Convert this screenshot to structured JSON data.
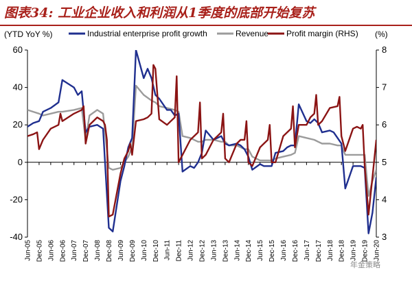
{
  "figure_title": "图表34: 工业企业收入和利润从1季度的底部开始复苏",
  "watermark": "年金策略",
  "colors": {
    "title": "#a8201a",
    "profit_growth": "#1f2f8f",
    "revenue": "#9b9b9b",
    "profit_margin": "#8b1414"
  },
  "chart_data": {
    "type": "line",
    "left_axis_label": "(YTD YoY %)",
    "right_axis_label": "(%)",
    "left_ylim": [
      -40,
      60
    ],
    "left_ticks": [
      -40,
      -20,
      0,
      20,
      40,
      60
    ],
    "right_ylim": [
      3,
      8
    ],
    "right_ticks": [
      3,
      4,
      5,
      6,
      7,
      8
    ],
    "x_tick_labels": [
      "Jun-05",
      "Dec-05",
      "Jun-06",
      "Dec-06",
      "Jun-07",
      "Dec-07",
      "Jun-08",
      "Dec-08",
      "Jun-09",
      "Dec-09",
      "Jun-10",
      "Dec-10",
      "Jun-11",
      "Dec-11",
      "Jun-12",
      "Dec-12",
      "Jun-13",
      "Dec-13",
      "Jun-14",
      "Dec-14",
      "Jun-15",
      "Dec-15",
      "Jun-16",
      "Dec-16",
      "Jun-17",
      "Dec-17",
      "Jun-18",
      "Dec-18",
      "Jun-19",
      "Dec-19",
      "Jun-20"
    ],
    "grid": false,
    "legend_position": "top",
    "series": [
      {
        "name": "Industrial enterprise profit growth",
        "axis": "left",
        "color_key": "profit_growth",
        "points": [
          [
            "Jun-05",
            19
          ],
          [
            "Sep-05",
            21
          ],
          [
            "Dec-05",
            22
          ],
          [
            "Feb-06",
            27
          ],
          [
            "Jun-06",
            29
          ],
          [
            "Oct-06",
            32
          ],
          [
            "Dec-06",
            44
          ],
          [
            "Jun-07",
            40
          ],
          [
            "Aug-07",
            36
          ],
          [
            "Oct-07",
            38
          ],
          [
            "Dec-07",
            16
          ],
          [
            "Feb-08",
            19
          ],
          [
            "Jun-08",
            20
          ],
          [
            "Sep-08",
            18
          ],
          [
            "Dec-08",
            -35
          ],
          [
            "Feb-09",
            -37
          ],
          [
            "Jun-09",
            -10
          ],
          [
            "Aug-09",
            -2
          ],
          [
            "Oct-09",
            8
          ],
          [
            "Dec-09",
            13
          ],
          [
            "Feb-10",
            60
          ],
          [
            "Jun-10",
            45
          ],
          [
            "Aug-10",
            50
          ],
          [
            "Oct-10",
            45
          ],
          [
            "Dec-10",
            36
          ],
          [
            "Feb-11",
            34
          ],
          [
            "Jun-11",
            28
          ],
          [
            "Aug-11",
            28
          ],
          [
            "Oct-11",
            25
          ],
          [
            "Dec-11",
            26
          ],
          [
            "Feb-12",
            -5
          ],
          [
            "Jun-12",
            -2
          ],
          [
            "Aug-12",
            -3
          ],
          [
            "Oct-12",
            0
          ],
          [
            "Dec-12",
            5
          ],
          [
            "Feb-13",
            17
          ],
          [
            "Jun-13",
            12
          ],
          [
            "Aug-13",
            13
          ],
          [
            "Oct-13",
            14
          ],
          [
            "Dec-13",
            10
          ],
          [
            "Feb-14",
            9
          ],
          [
            "Jun-14",
            10
          ],
          [
            "Aug-14",
            9
          ],
          [
            "Oct-14",
            7
          ],
          [
            "Dec-14",
            3
          ],
          [
            "Feb-15",
            -4
          ],
          [
            "Jun-15",
            -1
          ],
          [
            "Aug-15",
            -2
          ],
          [
            "Oct-15",
            -2
          ],
          [
            "Dec-15",
            -2
          ],
          [
            "Feb-16",
            5
          ],
          [
            "Jun-16",
            6
          ],
          [
            "Aug-16",
            8
          ],
          [
            "Oct-16",
            9
          ],
          [
            "Dec-16",
            9
          ],
          [
            "Feb-17",
            31
          ],
          [
            "Jun-17",
            22
          ],
          [
            "Aug-17",
            21
          ],
          [
            "Oct-17",
            23
          ],
          [
            "Dec-17",
            21
          ],
          [
            "Feb-18",
            16
          ],
          [
            "Jun-18",
            17
          ],
          [
            "Aug-18",
            16
          ],
          [
            "Oct-18",
            13
          ],
          [
            "Dec-18",
            10
          ],
          [
            "Feb-19",
            -14
          ],
          [
            "Jun-19",
            -2
          ],
          [
            "Aug-19",
            -2
          ],
          [
            "Oct-19",
            -2
          ],
          [
            "Dec-19",
            -3
          ],
          [
            "Feb-20",
            -38
          ],
          [
            "Apr-20",
            -27
          ],
          [
            "Jun-20",
            -8
          ]
        ]
      },
      {
        "name": "Revenue",
        "axis": "left",
        "color_key": "revenue",
        "points": [
          [
            "Jun-05",
            28
          ],
          [
            "Sep-05",
            27
          ],
          [
            "Dec-05",
            26
          ],
          [
            "Feb-06",
            25
          ],
          [
            "Jun-06",
            26
          ],
          [
            "Oct-06",
            27
          ],
          [
            "Dec-06",
            27
          ],
          [
            "Jun-07",
            28
          ],
          [
            "Oct-07",
            29
          ],
          [
            "Dec-07",
            12
          ],
          [
            "Feb-08",
            25
          ],
          [
            "Jun-08",
            28
          ],
          [
            "Sep-08",
            26
          ],
          [
            "Dec-08",
            -3
          ],
          [
            "Feb-09",
            -4
          ],
          [
            "Jun-09",
            -3
          ],
          [
            "Aug-09",
            0
          ],
          [
            "Oct-09",
            3
          ],
          [
            "Dec-09",
            8
          ],
          [
            "Feb-10",
            41
          ],
          [
            "Jun-10",
            36
          ],
          [
            "Oct-10",
            33
          ],
          [
            "Dec-10",
            32
          ],
          [
            "Feb-11",
            30
          ],
          [
            "Jun-11",
            29
          ],
          [
            "Oct-11",
            28
          ],
          [
            "Dec-11",
            27
          ],
          [
            "Feb-12",
            14
          ],
          [
            "Jun-12",
            13
          ],
          [
            "Oct-12",
            11
          ],
          [
            "Dec-12",
            11
          ],
          [
            "Feb-13",
            12
          ],
          [
            "Jun-13",
            12
          ],
          [
            "Oct-13",
            11
          ],
          [
            "Dec-13",
            11
          ],
          [
            "Feb-14",
            9
          ],
          [
            "Jun-14",
            9
          ],
          [
            "Oct-14",
            7
          ],
          [
            "Dec-14",
            7
          ],
          [
            "Feb-15",
            3
          ],
          [
            "Jun-15",
            1
          ],
          [
            "Oct-15",
            1
          ],
          [
            "Dec-15",
            1
          ],
          [
            "Feb-16",
            2
          ],
          [
            "Jun-16",
            3
          ],
          [
            "Oct-16",
            4
          ],
          [
            "Dec-16",
            5
          ],
          [
            "Feb-17",
            14
          ],
          [
            "Jun-17",
            13
          ],
          [
            "Oct-17",
            12
          ],
          [
            "Dec-17",
            11
          ],
          [
            "Feb-18",
            10
          ],
          [
            "Jun-18",
            10
          ],
          [
            "Oct-18",
            9
          ],
          [
            "Dec-18",
            9
          ],
          [
            "Feb-19",
            4
          ],
          [
            "Jun-19",
            4
          ],
          [
            "Oct-19",
            4
          ],
          [
            "Dec-19",
            4
          ],
          [
            "Feb-20",
            -18
          ],
          [
            "Apr-20",
            -10
          ],
          [
            "Jun-20",
            -4
          ]
        ]
      },
      {
        "name": "Profit margin (RHS)",
        "axis": "right",
        "color_key": "profit_margin",
        "points": [
          [
            "Jun-05",
            5.7
          ],
          [
            "Sep-05",
            5.75
          ],
          [
            "Nov-05",
            5.8
          ],
          [
            "Dec-05",
            5.35
          ],
          [
            "Feb-06",
            5.6
          ],
          [
            "Jun-06",
            5.9
          ],
          [
            "Oct-06",
            6.0
          ],
          [
            "Nov-06",
            6.3
          ],
          [
            "Dec-06",
            6.1
          ],
          [
            "Jun-07",
            6.3
          ],
          [
            "Oct-07",
            6.4
          ],
          [
            "Nov-07",
            6.5
          ],
          [
            "Dec-07",
            5.5
          ],
          [
            "Feb-08",
            6.0
          ],
          [
            "Jun-08",
            6.2
          ],
          [
            "Sep-08",
            6.1
          ],
          [
            "Oct-08",
            6.0
          ],
          [
            "Nov-08",
            5.6
          ],
          [
            "Dec-08",
            3.55
          ],
          [
            "Feb-09",
            3.6
          ],
          [
            "Jun-09",
            4.7
          ],
          [
            "Aug-09",
            5.1
          ],
          [
            "Oct-09",
            5.3
          ],
          [
            "Nov-09",
            5.5
          ],
          [
            "Dec-09",
            5.2
          ],
          [
            "Feb-10",
            6.1
          ],
          [
            "Jun-10",
            6.15
          ],
          [
            "Aug-10",
            6.2
          ],
          [
            "Oct-10",
            6.3
          ],
          [
            "Nov-10",
            7.6
          ],
          [
            "Dec-10",
            7.5
          ],
          [
            "Feb-11",
            6.15
          ],
          [
            "Jun-11",
            6.0
          ],
          [
            "Aug-11",
            6.1
          ],
          [
            "Oct-11",
            6.2
          ],
          [
            "Nov-11",
            7.3
          ],
          [
            "Dec-11",
            5.0
          ],
          [
            "Feb-12",
            5.2
          ],
          [
            "Jun-12",
            5.6
          ],
          [
            "Aug-12",
            5.7
          ],
          [
            "Oct-12",
            5.8
          ],
          [
            "Nov-12",
            6.6
          ],
          [
            "Dec-12",
            5.1
          ],
          [
            "Feb-13",
            5.2
          ],
          [
            "Jun-13",
            5.6
          ],
          [
            "Aug-13",
            5.7
          ],
          [
            "Oct-13",
            5.8
          ],
          [
            "Nov-13",
            6.3
          ],
          [
            "Dec-13",
            5.1
          ],
          [
            "Feb-14",
            5.0
          ],
          [
            "Jun-14",
            5.5
          ],
          [
            "Aug-14",
            5.6
          ],
          [
            "Oct-14",
            5.6
          ],
          [
            "Nov-14",
            6.1
          ],
          [
            "Dec-14",
            5.0
          ],
          [
            "Feb-15",
            4.9
          ],
          [
            "Jun-15",
            5.4
          ],
          [
            "Aug-15",
            5.5
          ],
          [
            "Oct-15",
            5.6
          ],
          [
            "Nov-15",
            6.0
          ],
          [
            "Dec-15",
            5.0
          ],
          [
            "Feb-16",
            5.0
          ],
          [
            "Jun-16",
            5.7
          ],
          [
            "Aug-16",
            5.8
          ],
          [
            "Oct-16",
            5.9
          ],
          [
            "Nov-16",
            6.5
          ],
          [
            "Dec-16",
            5.4
          ],
          [
            "Feb-17",
            6.0
          ],
          [
            "Jun-17",
            6.0
          ],
          [
            "Aug-17",
            6.2
          ],
          [
            "Oct-17",
            6.3
          ],
          [
            "Nov-17",
            6.8
          ],
          [
            "Dec-17",
            6.0
          ],
          [
            "Feb-18",
            6.1
          ],
          [
            "Jun-18",
            6.45
          ],
          [
            "Oct-18",
            6.5
          ],
          [
            "Nov-18",
            6.75
          ],
          [
            "Dec-18",
            5.7
          ],
          [
            "Feb-19",
            5.3
          ],
          [
            "Jun-19",
            5.9
          ],
          [
            "Aug-19",
            5.95
          ],
          [
            "Oct-19",
            5.9
          ],
          [
            "Nov-19",
            6.0
          ],
          [
            "Dec-19",
            4.9
          ],
          [
            "Feb-20",
            3.6
          ],
          [
            "Apr-20",
            4.6
          ],
          [
            "Jun-20",
            5.6
          ]
        ]
      }
    ]
  }
}
